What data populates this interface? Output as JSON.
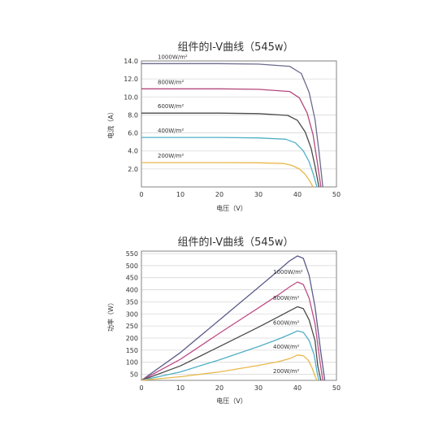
{
  "chart_data": [
    {
      "type": "line",
      "title": "组件的I-V曲线（545w）",
      "xlabel": "电压（V）",
      "ylabel": "电流（A）",
      "xlim": [
        0,
        50
      ],
      "ylim": [
        0,
        14
      ],
      "xticks": [
        "0",
        "10",
        "20",
        "30",
        "40",
        "50"
      ],
      "yticks": [
        "2.0",
        "4.0",
        "6.0",
        "8.0",
        "10.0",
        "12.0",
        "14.0"
      ],
      "grid": true,
      "series": [
        {
          "name": "1000W/m²",
          "color": "#6b6b8e",
          "isc": 13.7,
          "knee": 40.5,
          "voc": 46.5,
          "x": [
            0,
            10,
            20,
            30,
            38,
            41,
            43,
            44.5,
            45.5,
            46.5
          ],
          "y": [
            13.7,
            13.7,
            13.7,
            13.65,
            13.4,
            12.6,
            10.5,
            7.5,
            4.0,
            0
          ]
        },
        {
          "name": "800W/m²",
          "color": "#b5487d",
          "isc": 10.9,
          "knee": 40,
          "voc": 46,
          "x": [
            0,
            10,
            20,
            30,
            38,
            40.5,
            42.5,
            44,
            45,
            46
          ],
          "y": [
            10.9,
            10.9,
            10.9,
            10.85,
            10.6,
            9.9,
            8.2,
            5.8,
            3.0,
            0
          ]
        },
        {
          "name": "600W/m²",
          "color": "#4a4a4a",
          "isc": 8.2,
          "knee": 39.5,
          "voc": 45.5,
          "x": [
            0,
            10,
            20,
            30,
            37.5,
            40,
            42,
            43.5,
            44.5,
            45.5
          ],
          "y": [
            8.2,
            8.2,
            8.2,
            8.15,
            7.95,
            7.4,
            6.1,
            4.3,
            2.3,
            0
          ]
        },
        {
          "name": "400W/m²",
          "color": "#4fb0c6",
          "isc": 5.5,
          "knee": 39,
          "voc": 45,
          "x": [
            0,
            10,
            20,
            30,
            37,
            39.5,
            41.5,
            43,
            44,
            45
          ],
          "y": [
            5.5,
            5.5,
            5.5,
            5.45,
            5.3,
            4.9,
            4.0,
            2.8,
            1.5,
            0
          ]
        },
        {
          "name": "200W/m²",
          "color": "#e8b84a",
          "isc": 2.7,
          "knee": 38,
          "voc": 44,
          "x": [
            0,
            10,
            20,
            30,
            36.5,
            38.5,
            40.5,
            42,
            43,
            44
          ],
          "y": [
            2.7,
            2.7,
            2.7,
            2.68,
            2.6,
            2.4,
            2.0,
            1.4,
            0.75,
            0
          ]
        }
      ]
    },
    {
      "type": "line",
      "title": "组件的I-V曲线（545w）",
      "xlabel": "电压（V）",
      "ylabel": "功率（W）",
      "xlim": [
        0,
        50
      ],
      "ylim": [
        25,
        560
      ],
      "xticks": [
        "0",
        "10",
        "20",
        "30",
        "40",
        "50"
      ],
      "yticks": [
        "50",
        "100",
        "150",
        "200",
        "250",
        "300",
        "350",
        "400",
        "450",
        "500",
        "550"
      ],
      "grid": true,
      "series": [
        {
          "name": "1000W/m²",
          "color": "#5b5b8a",
          "x": [
            0,
            10,
            20,
            30,
            35,
            38,
            40,
            41.5,
            43,
            44.5,
            46,
            47
          ],
          "y": [
            25,
            140,
            275,
            410,
            478,
            520,
            540,
            530,
            460,
            330,
            140,
            25
          ]
        },
        {
          "name": "800W/m²",
          "color": "#c04d87",
          "x": [
            0,
            10,
            20,
            30,
            35,
            38,
            40,
            41.5,
            43,
            44.5,
            45.7,
            46.5
          ],
          "y": [
            25,
            112,
            220,
            325,
            378,
            412,
            432,
            422,
            365,
            260,
            110,
            25
          ]
        },
        {
          "name": "600W/m²",
          "color": "#4a4a4a",
          "x": [
            0,
            10,
            20,
            30,
            35,
            38,
            40,
            41.5,
            43,
            44.5,
            45.2,
            46
          ],
          "y": [
            25,
            85,
            165,
            245,
            287,
            313,
            330,
            322,
            275,
            190,
            85,
            25
          ]
        },
        {
          "name": "400W/m²",
          "color": "#4fb0c6",
          "x": [
            0,
            10,
            20,
            30,
            35,
            38,
            40,
            41.5,
            43,
            44.3,
            45,
            45.5
          ],
          "y": [
            25,
            60,
            110,
            165,
            195,
            215,
            230,
            224,
            190,
            130,
            60,
            25
          ]
        },
        {
          "name": "200W/m²",
          "color": "#e8b84a",
          "x": [
            0,
            10,
            20,
            30,
            35,
            38,
            40,
            41.5,
            42.8,
            43.8,
            44.5,
            45
          ],
          "y": [
            25,
            40,
            60,
            87,
            102,
            115,
            130,
            127,
            108,
            75,
            42,
            25
          ]
        }
      ]
    }
  ]
}
